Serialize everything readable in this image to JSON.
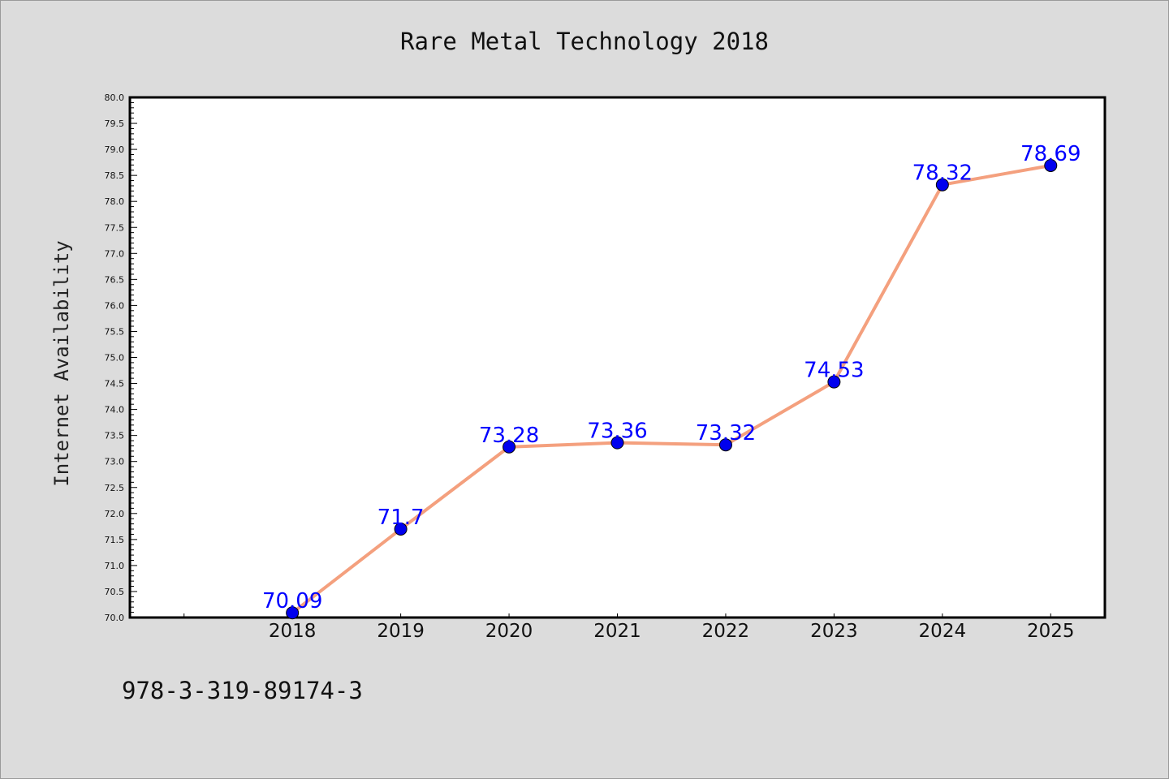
{
  "title": "Rare Metal Technology 2018",
  "footer_code": "978-3-319-89174-3",
  "colors": {
    "background": "#dcdcdc",
    "plot_background": "#ffffff",
    "line": "#f4a07e",
    "marker": "#0000ee",
    "data_label": "#0000ff"
  },
  "chart_data": {
    "type": "line",
    "title": "Rare Metal Technology 2018",
    "xlabel": "",
    "ylabel": "Internet Availability",
    "x": [
      2018,
      2019,
      2020,
      2021,
      2022,
      2023,
      2024,
      2025
    ],
    "x_tick_labels": [
      "2018",
      "2019",
      "2020",
      "2021",
      "2022",
      "2023",
      "2024",
      "2025"
    ],
    "xlim": [
      2016.5,
      2025.5
    ],
    "series": [
      {
        "values": [
          70.09,
          71.7,
          73.28,
          73.36,
          73.32,
          74.53,
          78.32,
          78.69
        ],
        "labels": [
          "70.09",
          "71.7",
          "73.28",
          "73.36",
          "73.32",
          "74.53",
          "78.32",
          "78.69"
        ]
      }
    ],
    "ylim": [
      70.0,
      80.0
    ],
    "y_tick_labels": [
      "70.0",
      "70.5",
      "71.0",
      "71.5",
      "72.0",
      "72.5",
      "73.0",
      "73.5",
      "74.0",
      "74.5",
      "75.0",
      "75.5",
      "76.0",
      "76.5",
      "77.0",
      "77.5",
      "78.0",
      "78.5",
      "79.0",
      "79.5",
      "80.0"
    ],
    "grid": false,
    "legend": "none"
  }
}
